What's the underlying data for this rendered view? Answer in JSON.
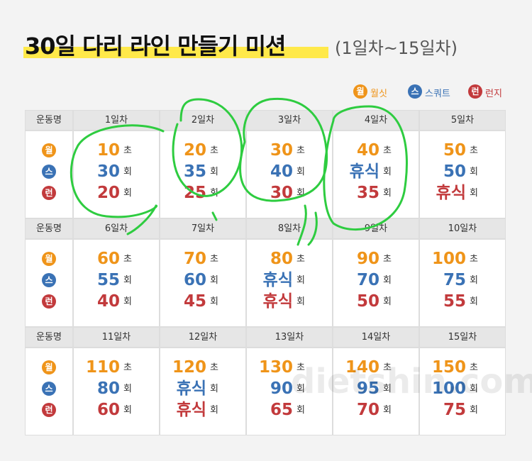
{
  "header": {
    "title": "30일 다리 라인 만들기 미션",
    "subtitle": "(1일차~15일차)"
  },
  "legend": [
    {
      "icon": "월",
      "label": "월싯"
    },
    {
      "icon": "스",
      "label": "스쿼트"
    },
    {
      "icon": "런",
      "label": "런지"
    }
  ],
  "blocks": [
    {
      "label": "운동명",
      "days": [
        "1일차",
        "2일차",
        "3일차",
        "4일차",
        "5일차"
      ],
      "rows": [
        {
          "icon": "월",
          "cells": [
            {
              "value": "10",
              "unit": "초"
            },
            {
              "value": "20",
              "unit": "초"
            },
            {
              "value": "30",
              "unit": "초"
            },
            {
              "value": "40",
              "unit": "초"
            },
            {
              "value": "50",
              "unit": "초"
            }
          ]
        },
        {
          "icon": "스",
          "cells": [
            {
              "value": "30",
              "unit": "회"
            },
            {
              "value": "35",
              "unit": "회"
            },
            {
              "value": "40",
              "unit": "회"
            },
            {
              "value": "휴식",
              "unit": "회"
            },
            {
              "value": "50",
              "unit": "회"
            }
          ]
        },
        {
          "icon": "런",
          "cells": [
            {
              "value": "20",
              "unit": "회"
            },
            {
              "value": "25",
              "unit": "회"
            },
            {
              "value": "30",
              "unit": "회"
            },
            {
              "value": "35",
              "unit": "회"
            },
            {
              "value": "휴식",
              "unit": "회"
            }
          ]
        }
      ]
    },
    {
      "label": "운동명",
      "days": [
        "6일차",
        "7일차",
        "8일차",
        "9일차",
        "10일차"
      ],
      "rows": [
        {
          "icon": "월",
          "cells": [
            {
              "value": "60",
              "unit": "초"
            },
            {
              "value": "70",
              "unit": "초"
            },
            {
              "value": "80",
              "unit": "초"
            },
            {
              "value": "90",
              "unit": "초"
            },
            {
              "value": "100",
              "unit": "초"
            }
          ]
        },
        {
          "icon": "스",
          "cells": [
            {
              "value": "55",
              "unit": "회"
            },
            {
              "value": "60",
              "unit": "회"
            },
            {
              "value": "휴식",
              "unit": "회"
            },
            {
              "value": "70",
              "unit": "회"
            },
            {
              "value": "75",
              "unit": "회"
            }
          ]
        },
        {
          "icon": "런",
          "cells": [
            {
              "value": "40",
              "unit": "회"
            },
            {
              "value": "45",
              "unit": "회"
            },
            {
              "value": "휴식",
              "unit": "회"
            },
            {
              "value": "50",
              "unit": "회"
            },
            {
              "value": "55",
              "unit": "회"
            }
          ]
        }
      ]
    },
    {
      "label": "운동명",
      "days": [
        "11일차",
        "12일차",
        "13일차",
        "14일차",
        "15일차"
      ],
      "rows": [
        {
          "icon": "월",
          "cells": [
            {
              "value": "110",
              "unit": "초"
            },
            {
              "value": "120",
              "unit": "초"
            },
            {
              "value": "130",
              "unit": "초"
            },
            {
              "value": "140",
              "unit": "초"
            },
            {
              "value": "150",
              "unit": "초"
            }
          ]
        },
        {
          "icon": "스",
          "cells": [
            {
              "value": "80",
              "unit": "회"
            },
            {
              "value": "휴식",
              "unit": "회"
            },
            {
              "value": "90",
              "unit": "회"
            },
            {
              "value": "95",
              "unit": "회"
            },
            {
              "value": "100",
              "unit": "회"
            }
          ]
        },
        {
          "icon": "런",
          "cells": [
            {
              "value": "60",
              "unit": "회"
            },
            {
              "value": "휴식",
              "unit": "회"
            },
            {
              "value": "65",
              "unit": "회"
            },
            {
              "value": "70",
              "unit": "회"
            },
            {
              "value": "75",
              "unit": "회"
            }
          ]
        }
      ]
    }
  ],
  "watermark": "dietshin.com"
}
